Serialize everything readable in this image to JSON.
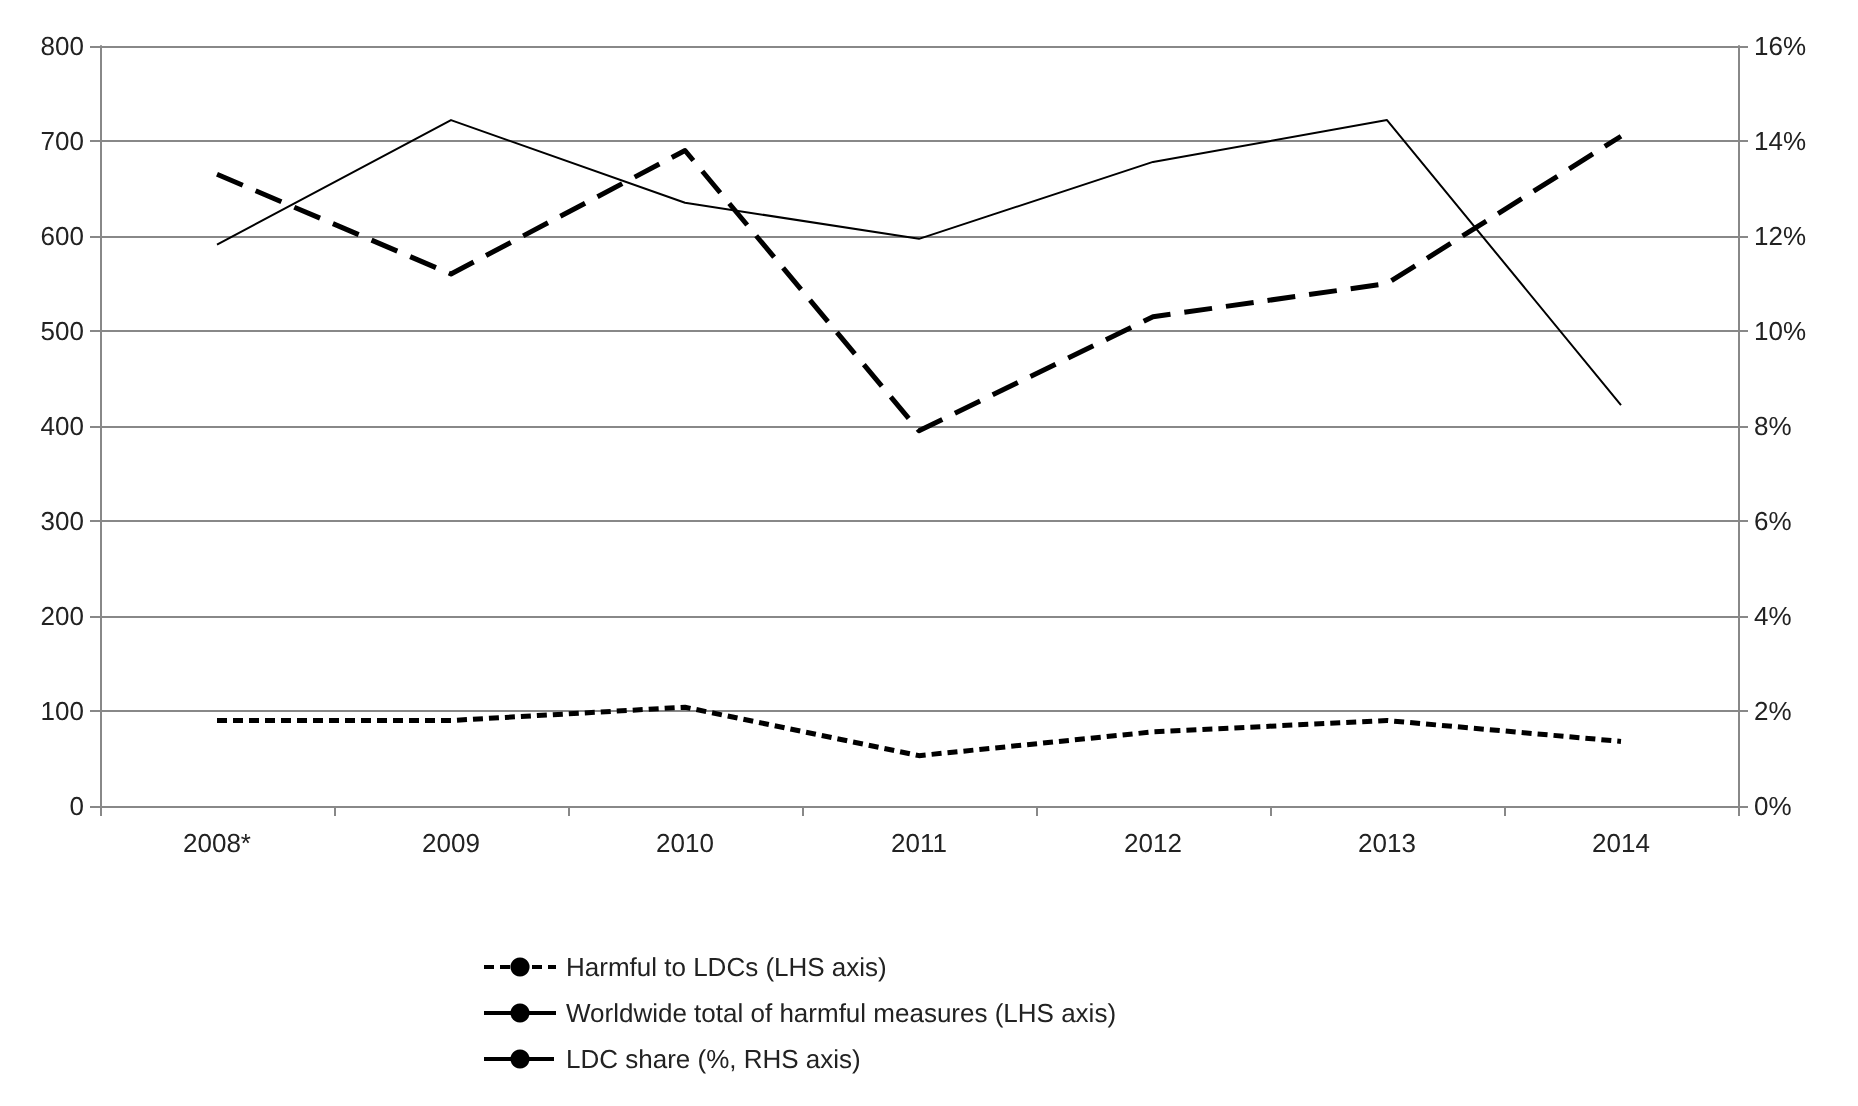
{
  "chart_data": {
    "type": "line",
    "categories": [
      "2008*",
      "2009",
      "2010",
      "2011",
      "2012",
      "2013",
      "2014"
    ],
    "series": [
      {
        "name": "Harmful to LDCs (LHS axis)",
        "color": "#000000",
        "line_style": "dotted",
        "values": [
          90,
          90,
          104,
          53,
          78,
          90,
          68
        ]
      },
      {
        "name": "Worldwide total of harmful measures (LHS axis)",
        "color": "#000000",
        "line_style": "solid",
        "values": [
          591,
          722,
          635,
          597,
          678,
          722,
          422
        ]
      },
      {
        "name": "LDC share (%, RHS axis)",
        "color": "#000000",
        "line_style": "dashed",
        "axis": "y2",
        "values": [
          13.3,
          11.2,
          13.8,
          7.9,
          10.3,
          11.0,
          14.1
        ]
      }
    ],
    "ylim": [
      0,
      800
    ],
    "yticks": [
      0,
      100,
      200,
      300,
      400,
      500,
      600,
      700,
      800
    ],
    "y2lim": [
      0,
      16
    ],
    "y2ticks": [
      {
        "value": 0,
        "label": "0%"
      },
      {
        "value": 2,
        "label": "2%"
      },
      {
        "value": 4,
        "label": "4%"
      },
      {
        "value": 6,
        "label": "6%"
      },
      {
        "value": 8,
        "label": "8%"
      },
      {
        "value": 10,
        "label": "10%"
      },
      {
        "value": 12,
        "label": "12%"
      },
      {
        "value": 14,
        "label": "14%"
      },
      {
        "value": 16,
        "label": "16%"
      }
    ],
    "grid": "y",
    "legend": "bottom",
    "marker": "none"
  }
}
